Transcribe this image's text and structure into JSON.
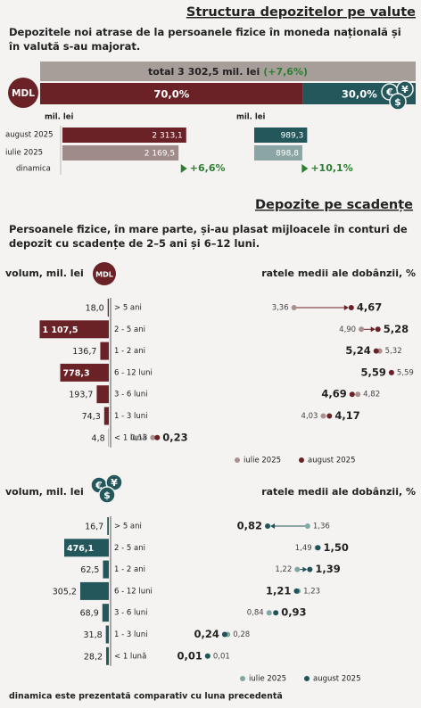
{
  "chart_data": [
    {
      "type": "share-bar",
      "title": "Structura depozitelor pe valute",
      "subtitle": "Depozitele noi atrase de la persoanele fizice în moneda națională și în valută s-au majorat.",
      "total_label": "total 3 302,5 mil. lei",
      "total_change": "(+7,6%)",
      "currency": "MDL",
      "fx_symbols": [
        "€",
        "¥",
        "$"
      ],
      "values": [
        70.0,
        30.0
      ],
      "value_labels": [
        "70,0%",
        "30,0%"
      ],
      "colors": [
        "#6b2226",
        "#23575c"
      ],
      "total_color": "#a89e99",
      "change_color": "#2e7d32"
    },
    {
      "type": "hbar",
      "unit_label": "mil. lei",
      "categories": [
        "august 2025",
        "iulie 2025"
      ],
      "series": [
        {
          "values": [
            2313.1,
            2169.5
          ],
          "value_labels": [
            "2 313,1",
            "2 169,5"
          ],
          "colors": [
            "#6b2226",
            "#a08b8b"
          ]
        },
        {
          "values": [
            989.3,
            898.8
          ],
          "value_labels": [
            "989,3",
            "898,8"
          ],
          "colors": [
            "#23575c",
            "#8aa5a3"
          ]
        }
      ],
      "dynamics_label": "dinamica",
      "dynamics": [
        "+6,6%",
        "+10,1%"
      ],
      "dynamics_color": "#2e7d32"
    },
    {
      "type": "maturity",
      "title": "Depozite pe scadențe",
      "subtitle": "Persoanele fizice, în mare parte, și-au plasat mijloacele în conturi de depozit cu scadențe de 2–5 ani și 6–12 luni.",
      "volume_label": "volum, mil. lei",
      "currency": "MDL",
      "rate_label": "ratele medii ale dobânzii, %",
      "categories": [
        "> 5 ani",
        "2 - 5 ani",
        "1 - 2 ani",
        "6 - 12 luni",
        "3 - 6 luni",
        "1 - 3 luni",
        "< 1 lună"
      ],
      "volumes": [
        18.0,
        1107.5,
        136.7,
        778.3,
        193.7,
        74.3,
        4.8
      ],
      "volume_labels": [
        "18,0",
        "1 107,5",
        "136,7",
        "778,3",
        "193,7",
        "74,3",
        "4,8"
      ],
      "volume_color": "#6b2226",
      "series": [
        {
          "name": "iulie 2025",
          "color": "#ac8f8f",
          "values": [
            3.36,
            4.9,
            5.32,
            5.59,
            4.82,
            4.03,
            0.13
          ],
          "value_labels": [
            "3,36",
            "4,90",
            "5,32",
            "5,59",
            "4,82",
            "4,03",
            "0,13"
          ]
        },
        {
          "name": "august 2025",
          "color": "#6b2226",
          "values": [
            4.67,
            5.28,
            5.24,
            5.59,
            4.69,
            4.17,
            0.23
          ],
          "value_labels": [
            "4,67",
            "5,28",
            "5,24",
            "5,59",
            "4,69",
            "4,17",
            "0,23"
          ]
        }
      ]
    },
    {
      "type": "maturity",
      "volume_label": "volum, mil. lei",
      "fx_symbols": [
        "€",
        "¥",
        "$"
      ],
      "rate_label": "ratele medii ale dobânzii, %",
      "categories": [
        "> 5 ani",
        "2 - 5 ani",
        "1 - 2 ani",
        "6 - 12 luni",
        "3 - 6 luni",
        "1 - 3 luni",
        "< 1 lună"
      ],
      "volumes": [
        16.7,
        476.1,
        62.5,
        305.2,
        68.9,
        31.8,
        28.2
      ],
      "volume_labels": [
        "16,7",
        "476,1",
        "62,5",
        "305,2",
        "68,9",
        "31,8",
        "28,2"
      ],
      "volume_color": "#23575c",
      "series": [
        {
          "name": "iulie 2025",
          "color": "#7fa8a4",
          "values": [
            1.36,
            1.49,
            1.22,
            1.23,
            0.84,
            0.28,
            0.01
          ],
          "value_labels": [
            "1,36",
            "1,49",
            "1,22",
            "1,23",
            "0,84",
            "0,28",
            "0,01"
          ]
        },
        {
          "name": "august 2025",
          "color": "#1f5459",
          "values": [
            0.82,
            1.5,
            1.39,
            1.21,
            0.93,
            0.24,
            0.01
          ],
          "value_labels": [
            "0,82",
            "1,50",
            "1,39",
            "1,21",
            "0,93",
            "0,24",
            "0,01"
          ]
        }
      ]
    }
  ],
  "footer": "dinamica este prezentată comparativ cu luna precedentă"
}
